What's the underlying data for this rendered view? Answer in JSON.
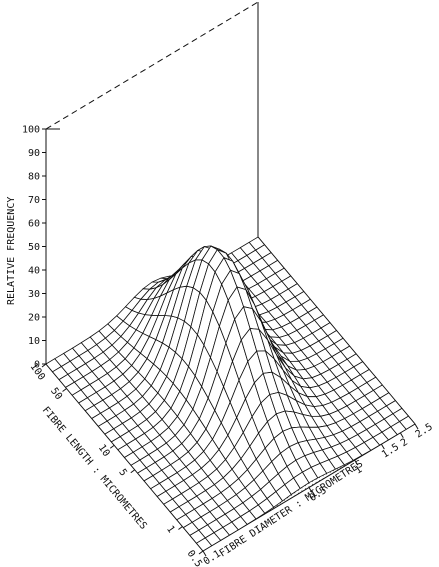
{
  "chart_data": {
    "type": "surface3d",
    "zlabel": "RELATIVE FREQUENCY",
    "xlabel": "FIBRE DIAMETER : MICROMETRES",
    "ylabel": "FIBRE LENGTH : MICROMETRES",
    "z_ticks": [
      "0",
      "10",
      "20",
      "30",
      "40",
      "50",
      "60",
      "70",
      "80",
      "90",
      "100"
    ],
    "zlim": [
      0,
      100
    ],
    "x_ticks": [
      "0.1",
      "0.5",
      "1",
      "1.5",
      "2",
      "2.5"
    ],
    "x_tick_values": [
      0.1,
      0.5,
      1,
      1.5,
      2,
      2.5
    ],
    "xlim": [
      0.1,
      2.5
    ],
    "x_scale": "log",
    "y_ticks": [
      "0.5",
      "1",
      "5",
      "10",
      "50",
      "100"
    ],
    "y_tick_values": [
      0.5,
      1,
      5,
      10,
      50,
      100
    ],
    "ylim": [
      0.5,
      100
    ],
    "y_scale": "log",
    "peak": {
      "diameter": 0.5,
      "length": 10,
      "relative_frequency": 55
    },
    "grid": true
  }
}
